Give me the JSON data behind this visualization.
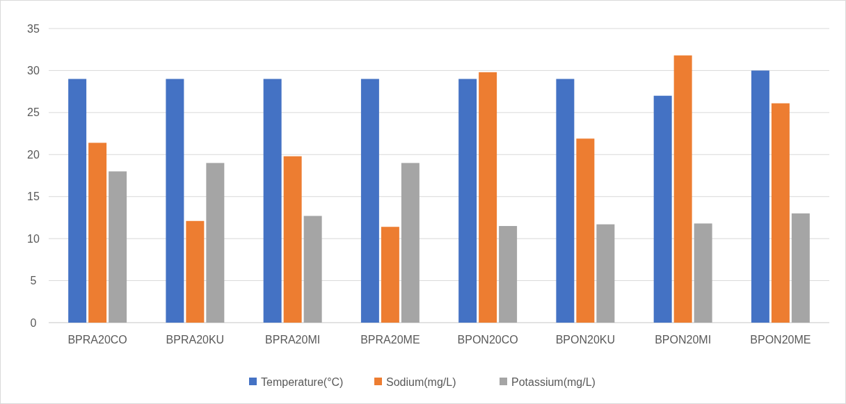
{
  "chart_data": {
    "type": "bar",
    "categories": [
      "BPRA20CO",
      "BPRA20KU",
      "BPRA20MI",
      "BPRA20ME",
      "BPON20CO",
      "BPON20KU",
      "BPON20MI",
      "BPON20ME"
    ],
    "series": [
      {
        "name": "Temperature(°C)",
        "color": "#4472c4",
        "values": [
          29,
          29,
          29,
          29,
          29,
          29,
          27,
          30
        ]
      },
      {
        "name": "Sodium(mg/L)",
        "color": "#ed7d31",
        "values": [
          21.4,
          12.1,
          19.8,
          11.4,
          29.8,
          21.9,
          31.8,
          26.1
        ]
      },
      {
        "name": "Potassium(mg/L)",
        "color": "#a5a5a5",
        "values": [
          18,
          19,
          12.7,
          19,
          11.5,
          11.7,
          11.8,
          13
        ]
      }
    ],
    "ylim": [
      0,
      35
    ],
    "yticks": [
      0,
      5,
      10,
      15,
      20,
      25,
      30,
      35
    ],
    "grid": "y",
    "legend": "bottom"
  }
}
